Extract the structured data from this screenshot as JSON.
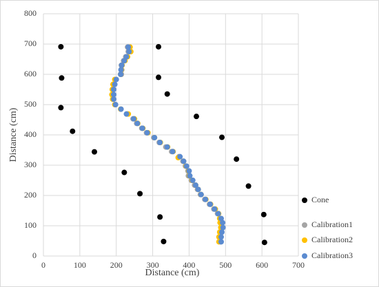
{
  "chart_data": {
    "type": "scatter",
    "xlabel": "Distance (cm)",
    "ylabel": "Distance (cm)",
    "xlim": [
      0,
      700
    ],
    "xticks": [
      0,
      100,
      200,
      300,
      400,
      500,
      600,
      700
    ],
    "ylim": [
      0,
      800
    ],
    "yticks": [
      0,
      100,
      200,
      300,
      400,
      500,
      600,
      700,
      800
    ],
    "grid": true,
    "legend": "right",
    "series": [
      {
        "name": "Cone",
        "color": "#000000",
        "x": [
          48,
          316,
          50,
          316,
          340,
          48,
          420,
          80,
          490,
          140,
          530,
          222,
          563,
          265,
          320,
          605,
          607,
          330
        ],
        "y": [
          691,
          691,
          588,
          590,
          535,
          490,
          461,
          412,
          392,
          344,
          320,
          276,
          231,
          206,
          129,
          137,
          45,
          48
        ]
      },
      {
        "name": "Calibration1",
        "color": "#a5a5a5",
        "x": [
          231,
          233,
          226,
          220,
          214,
          215,
          214,
          198,
          193,
          190,
          190,
          191,
          197,
          213,
          230,
          246,
          256,
          270,
          283,
          303,
          318,
          336,
          352,
          372,
          383,
          390,
          397,
          398,
          406,
          415,
          423,
          431,
          443,
          456,
          468,
          478,
          486,
          490,
          491,
          488,
          486,
          486
        ],
        "y": [
          690,
          675,
          658,
          645,
          630,
          615,
          600,
          583,
          567,
          550,
          533,
          518,
          500,
          485,
          469,
          453,
          438,
          422,
          407,
          391,
          375,
          360,
          345,
          328,
          313,
          297,
          281,
          265,
          250,
          234,
          220,
          203,
          187,
          171,
          155,
          140,
          124,
          110,
          94,
          79,
          63,
          47
        ]
      },
      {
        "name": "Calibration2",
        "color": "#ffc000",
        "x": [
          238,
          240,
          231,
          224,
          216,
          214,
          212,
          196,
          191,
          189,
          188,
          190,
          196,
          212,
          233,
          250,
          259,
          273,
          287,
          305,
          321,
          341,
          356,
          370,
          385,
          392,
          399,
          401,
          409,
          418,
          425,
          433,
          446,
          459,
          472,
          481,
          484,
          485,
          487,
          484,
          482,
          482
        ],
        "y": [
          690,
          675,
          658,
          645,
          630,
          615,
          600,
          583,
          567,
          550,
          533,
          518,
          500,
          485,
          469,
          453,
          438,
          422,
          407,
          391,
          375,
          360,
          345,
          325,
          313,
          297,
          281,
          265,
          250,
          234,
          220,
          203,
          187,
          171,
          155,
          140,
          124,
          110,
          94,
          79,
          63,
          47
        ]
      },
      {
        "name": "Calibration3",
        "color": "#5b8bd0",
        "x": [
          233,
          235,
          228,
          222,
          215,
          213,
          212,
          200,
          196,
          193,
          193,
          193,
          198,
          213,
          228,
          248,
          258,
          272,
          285,
          305,
          320,
          340,
          355,
          375,
          385,
          393,
          400,
          402,
          410,
          418,
          425,
          433,
          445,
          458,
          470,
          480,
          488,
          492,
          493,
          490,
          488,
          488
        ],
        "y": [
          690,
          675,
          658,
          645,
          630,
          615,
          600,
          583,
          567,
          550,
          533,
          518,
          500,
          485,
          469,
          453,
          438,
          422,
          407,
          391,
          375,
          360,
          345,
          328,
          313,
          297,
          281,
          265,
          250,
          234,
          220,
          203,
          187,
          171,
          155,
          140,
          124,
          110,
          94,
          79,
          63,
          47
        ]
      }
    ]
  }
}
